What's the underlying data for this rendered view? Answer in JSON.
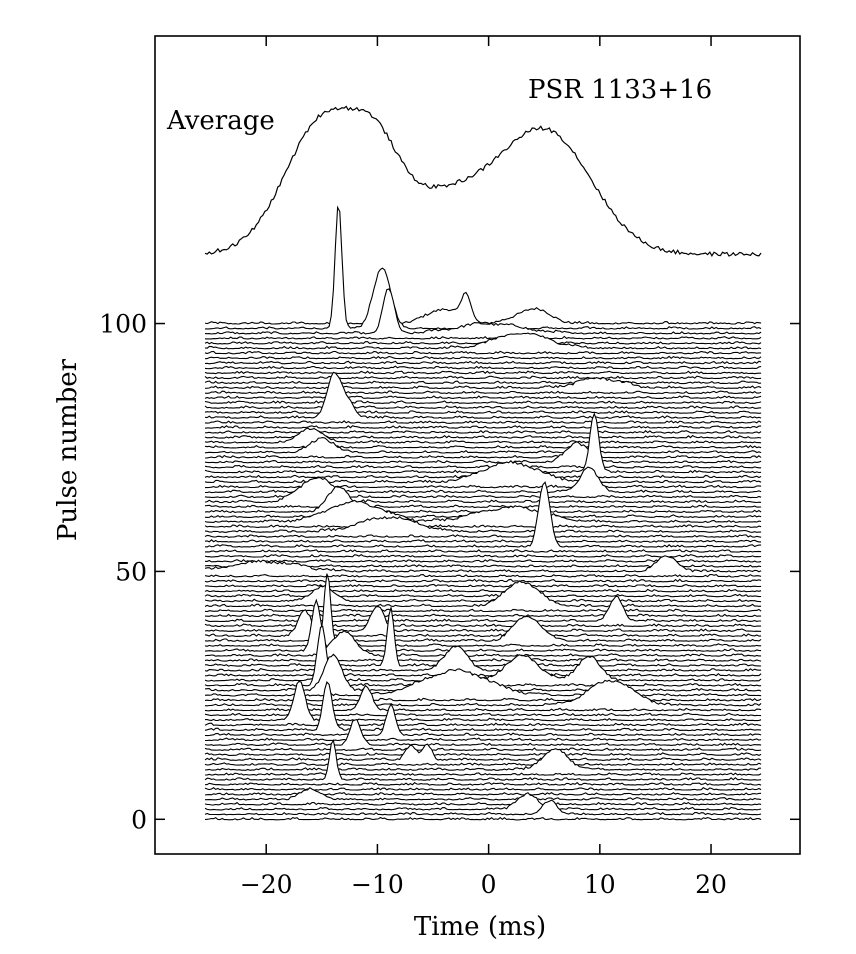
{
  "chart_data": {
    "type": "line",
    "title": "PSR 1133+16",
    "xlabel": "Time (ms)",
    "ylabel": "Pulse number",
    "xlim": [
      -30,
      28
    ],
    "ylim": [
      -7,
      158
    ],
    "x_ticks": [
      -20,
      -10,
      0,
      10,
      20
    ],
    "x_tick_labels": [
      "−20",
      "−10",
      "0",
      "10",
      "20"
    ],
    "y_ticks": [
      0,
      50,
      100
    ],
    "y_tick_labels": [
      "0",
      "50",
      "100"
    ],
    "grid": false,
    "legend": "none",
    "time_range_ms": [
      -25.5,
      24.5
    ],
    "pulse_count": 101,
    "average_label": "Average",
    "average_profile": {
      "baseline_pulse": 114,
      "peak_height": 27,
      "components": [
        {
          "center_ms": -14.8,
          "width_ms": 3.5,
          "amplitude": 0.95
        },
        {
          "center_ms": -10.0,
          "width_ms": 2.0,
          "amplitude": 0.35
        },
        {
          "center_ms": -4.0,
          "width_ms": 6.0,
          "amplitude": 0.45
        },
        {
          "center_ms": 5.5,
          "width_ms": 4.0,
          "amplitude": 0.8
        }
      ]
    },
    "single_pulse_spikes": [
      {
        "pulse": 99,
        "center_ms": -13.5,
        "width_ms": 0.3,
        "amplitude": 25
      },
      {
        "pulse": 99,
        "center_ms": -9.6,
        "width_ms": 0.8,
        "amplitude": 12
      },
      {
        "pulse": 98,
        "center_ms": -9.0,
        "width_ms": 0.5,
        "amplitude": 9
      },
      {
        "pulse": 100,
        "center_ms": -4.0,
        "width_ms": 1.5,
        "amplitude": 3
      },
      {
        "pulse": 100,
        "center_ms": -2.0,
        "width_ms": 0.4,
        "amplitude": 5
      },
      {
        "pulse": 100,
        "center_ms": 4.0,
        "width_ms": 1.5,
        "amplitude": 3
      },
      {
        "pulse": 98,
        "center_ms": 0.0,
        "width_ms": 3.0,
        "amplitude": 2
      },
      {
        "pulse": 95,
        "center_ms": 3.0,
        "width_ms": 2.5,
        "amplitude": 3
      },
      {
        "pulse": 87,
        "center_ms": 10.0,
        "width_ms": 2.0,
        "amplitude": 2
      },
      {
        "pulse": 81,
        "center_ms": -14.0,
        "width_ms": 0.6,
        "amplitude": 7
      },
      {
        "pulse": 81,
        "center_ms": -13.0,
        "width_ms": 0.8,
        "amplitude": 4
      },
      {
        "pulse": 76,
        "center_ms": -16.0,
        "width_ms": 1.0,
        "amplitude": 3
      },
      {
        "pulse": 74,
        "center_ms": -15.0,
        "width_ms": 1.0,
        "amplitude": 3
      },
      {
        "pulse": 72,
        "center_ms": 8.0,
        "width_ms": 1.0,
        "amplitude": 4
      },
      {
        "pulse": 70,
        "center_ms": 9.5,
        "width_ms": 0.4,
        "amplitude": 12
      },
      {
        "pulse": 68,
        "center_ms": 2.0,
        "width_ms": 2.5,
        "amplitude": 4
      },
      {
        "pulse": 66,
        "center_ms": 9.0,
        "width_ms": 0.8,
        "amplitude": 5
      },
      {
        "pulse": 64,
        "center_ms": -15.5,
        "width_ms": 1.5,
        "amplitude": 5
      },
      {
        "pulse": 62,
        "center_ms": -13.5,
        "width_ms": 1.0,
        "amplitude": 5
      },
      {
        "pulse": 60,
        "center_ms": -12.0,
        "width_ms": 2.5,
        "amplitude": 4
      },
      {
        "pulse": 60,
        "center_ms": 2.0,
        "width_ms": 3.0,
        "amplitude": 3
      },
      {
        "pulse": 58,
        "center_ms": -9.0,
        "width_ms": 2.5,
        "amplitude": 3
      },
      {
        "pulse": 55,
        "center_ms": 5.0,
        "width_ms": 0.5,
        "amplitude": 13
      },
      {
        "pulse": 50,
        "center_ms": -20.0,
        "width_ms": 3.0,
        "amplitude": 2
      },
      {
        "pulse": 50,
        "center_ms": 16.0,
        "width_ms": 1.0,
        "amplitude": 3
      },
      {
        "pulse": 44,
        "center_ms": -15.0,
        "width_ms": 1.0,
        "amplitude": 3
      },
      {
        "pulse": 43,
        "center_ms": 3.0,
        "width_ms": 1.5,
        "amplitude": 5
      },
      {
        "pulse": 40,
        "center_ms": 11.5,
        "width_ms": 0.6,
        "amplitude": 5
      },
      {
        "pulse": 38,
        "center_ms": -10.0,
        "width_ms": 0.6,
        "amplitude": 5
      },
      {
        "pulse": 37,
        "center_ms": -16.5,
        "width_ms": 0.6,
        "amplitude": 5
      },
      {
        "pulse": 36,
        "center_ms": 3.5,
        "width_ms": 1.2,
        "amplitude": 5
      },
      {
        "pulse": 35,
        "center_ms": -14.5,
        "width_ms": 0.3,
        "amplitude": 15
      },
      {
        "pulse": 34,
        "center_ms": -15.5,
        "width_ms": 0.4,
        "amplitude": 10
      },
      {
        "pulse": 33,
        "center_ms": -13.0,
        "width_ms": 1.0,
        "amplitude": 5
      },
      {
        "pulse": 31,
        "center_ms": -8.8,
        "width_ms": 0.3,
        "amplitude": 12
      },
      {
        "pulse": 30,
        "center_ms": -3.0,
        "width_ms": 1.0,
        "amplitude": 5
      },
      {
        "pulse": 28,
        "center_ms": 3.0,
        "width_ms": 1.5,
        "amplitude": 5
      },
      {
        "pulse": 28,
        "center_ms": 9.0,
        "width_ms": 1.0,
        "amplitude": 5
      },
      {
        "pulse": 27,
        "center_ms": -15.0,
        "width_ms": 0.4,
        "amplitude": 12
      },
      {
        "pulse": 26,
        "center_ms": -14.0,
        "width_ms": 0.8,
        "amplitude": 7
      },
      {
        "pulse": 25,
        "center_ms": -3.0,
        "width_ms": 3.0,
        "amplitude": 5
      },
      {
        "pulse": 23,
        "center_ms": 11.0,
        "width_ms": 2.0,
        "amplitude": 5
      },
      {
        "pulse": 22,
        "center_ms": -11.0,
        "width_ms": 0.5,
        "amplitude": 5
      },
      {
        "pulse": 20,
        "center_ms": -17.0,
        "width_ms": 0.5,
        "amplitude": 8
      },
      {
        "pulse": 18,
        "center_ms": -14.5,
        "width_ms": 0.4,
        "amplitude": 10
      },
      {
        "pulse": 17,
        "center_ms": -8.8,
        "width_ms": 0.4,
        "amplitude": 6
      },
      {
        "pulse": 15,
        "center_ms": -12.0,
        "width_ms": 0.5,
        "amplitude": 5
      },
      {
        "pulse": 12,
        "center_ms": -7.0,
        "width_ms": 0.5,
        "amplitude": 3
      },
      {
        "pulse": 12,
        "center_ms": -5.5,
        "width_ms": 0.4,
        "amplitude": 3
      },
      {
        "pulse": 10,
        "center_ms": 6.0,
        "width_ms": 1.2,
        "amplitude": 4
      },
      {
        "pulse": 8,
        "center_ms": -14.0,
        "width_ms": 0.3,
        "amplitude": 8
      },
      {
        "pulse": 4,
        "center_ms": -16.0,
        "width_ms": 1.0,
        "amplitude": 2
      },
      {
        "pulse": 2,
        "center_ms": 3.5,
        "width_ms": 1.0,
        "amplitude": 3
      },
      {
        "pulse": 1,
        "center_ms": 5.5,
        "width_ms": 0.6,
        "amplitude": 3
      }
    ]
  }
}
